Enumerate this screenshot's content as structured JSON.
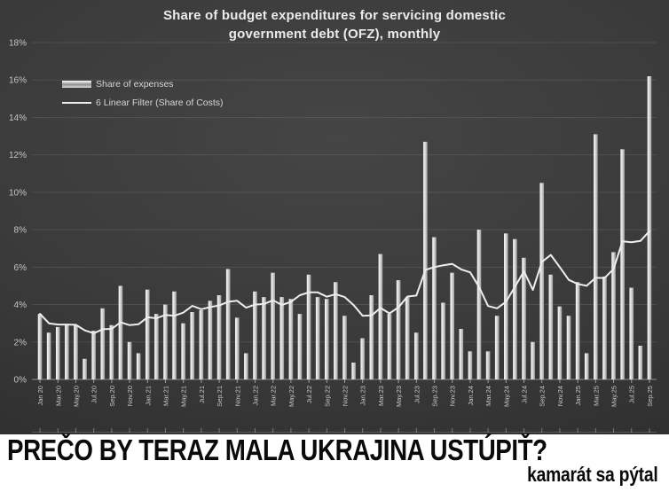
{
  "chart_data": {
    "type": "bar",
    "title": "Share of budget expenditures for servicing domestic government debt (OFZ), monthly",
    "title_lines": [
      "Share of budget expenditures for servicing domestic",
      "government debt (OFZ), monthly"
    ],
    "ylim": [
      0,
      18
    ],
    "ytick_step": 2,
    "ytick_suffix": "%",
    "grid": true,
    "legend_position": "top-left",
    "tick_every": 2,
    "x_tick_labels": [
      "Jan 20",
      "Mar.20",
      "May.20",
      "Jul.20",
      "Sep.20",
      "Nov.20",
      "Jan.21",
      "Mar.21",
      "May.21",
      "Jul.21",
      "Sep.21",
      "Nov.21",
      "Jan.22",
      "Mar.22",
      "May.22",
      "Jul.22",
      "Sep.22",
      "Nov.22",
      "Jan.23",
      "Mar.23",
      "May.23",
      "Jul.23",
      "Sep.23",
      "Nov.23",
      "Jan.24",
      "Mar.24",
      "May.24",
      "Jul.24",
      "Sep.24",
      "Nov.24",
      "Jan.25",
      "Mar.25",
      "May.25",
      "Jul.25",
      "Sep.25"
    ],
    "series": [
      {
        "name": "Share of expenses",
        "type": "bar",
        "values": [
          3.5,
          2.5,
          2.8,
          2.9,
          2.9,
          1.1,
          2.6,
          3.8,
          2.9,
          5.0,
          2.0,
          1.4,
          4.8,
          3.5,
          4.0,
          4.7,
          3.0,
          3.6,
          3.7,
          4.2,
          4.5,
          5.9,
          3.3,
          1.4,
          4.7,
          4.4,
          5.7,
          4.4,
          4.3,
          3.5,
          5.6,
          4.4,
          4.3,
          5.2,
          3.4,
          0.9,
          2.2,
          4.5,
          6.7,
          3.5,
          5.3,
          4.4,
          2.5,
          12.7,
          7.6,
          4.1,
          5.7,
          2.7,
          1.5,
          8.0,
          1.5,
          3.4,
          7.8,
          7.5,
          6.5,
          2.0,
          10.5,
          5.6,
          3.9,
          3.4,
          5.2,
          1.4,
          13.1,
          5.5,
          6.8,
          12.3,
          4.9,
          1.8,
          16.2
        ]
      },
      {
        "name": "6 Linear Filter (Share of Costs)",
        "type": "line",
        "values": [
          3.5,
          3.0,
          2.93,
          2.93,
          2.92,
          2.62,
          2.47,
          2.68,
          2.7,
          3.05,
          2.9,
          2.95,
          3.32,
          3.27,
          3.45,
          3.4,
          3.57,
          3.93,
          3.75,
          3.87,
          3.95,
          4.15,
          4.2,
          3.83,
          4.0,
          4.03,
          4.23,
          3.98,
          4.15,
          4.5,
          4.65,
          4.65,
          4.42,
          4.55,
          4.4,
          3.97,
          3.4,
          3.42,
          3.82,
          3.53,
          3.85,
          4.43,
          4.48,
          5.85,
          6.0,
          6.1,
          6.17,
          5.88,
          5.72,
          4.93,
          3.92,
          3.8,
          4.15,
          4.95,
          5.78,
          4.78,
          6.28,
          6.65,
          6.0,
          5.32,
          5.1,
          5.0,
          5.43,
          5.42,
          5.9,
          7.38,
          7.33,
          7.4,
          7.92
        ]
      }
    ],
    "colors": {
      "background": "#3a3a3a",
      "bar": "#d9d9d9",
      "line": "#ededed",
      "title_text": "#ebebeb",
      "axis_text": "#c6c6c6"
    }
  },
  "banner": {
    "headline": "PREČO BY TERAZ MALA UKRAJINA USTÚPIŤ?",
    "byline": "kamarát sa pýtal"
  }
}
